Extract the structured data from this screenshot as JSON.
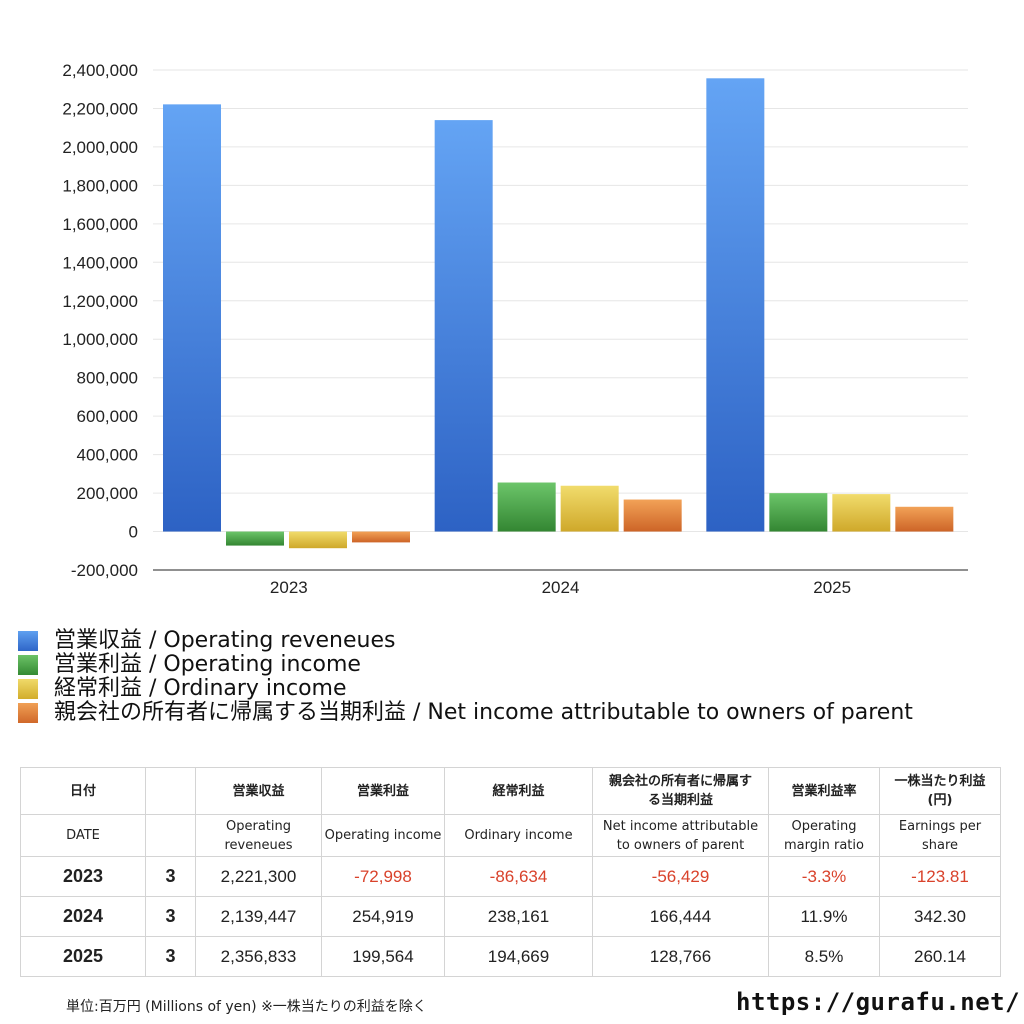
{
  "chart_data": {
    "type": "bar",
    "categories": [
      "2023",
      "2024",
      "2025"
    ],
    "series": [
      {
        "name": "営業収益 / Operating reveneues",
        "values": [
          2221300,
          2139447,
          2356833
        ],
        "color": "#3f7fdc"
      },
      {
        "name": "営業利益 / Operating income",
        "values": [
          -72998,
          254919,
          199564
        ],
        "color": "#4ca04a"
      },
      {
        "name": "経常利益 / Ordinary income",
        "values": [
          -86634,
          238161,
          194669
        ],
        "color": "#e3c43a"
      },
      {
        "name": "親会社の所有者に帰属する当期利益 / Net income attributable to owners of parent",
        "values": [
          -56429,
          166444,
          128766
        ],
        "color": "#e0803a"
      }
    ],
    "ylim": [
      -200000,
      2400000
    ],
    "yticks": [
      "2,400,000",
      "2,200,000",
      "2,000,000",
      "1,800,000",
      "1,600,000",
      "1,400,000",
      "1,200,000",
      "1,000,000",
      "800,000",
      "600,000",
      "400,000",
      "200,000",
      "0",
      "-200,000"
    ],
    "grid": true,
    "legend_position": "bottom-left"
  },
  "table": {
    "headers_ja": [
      "日付",
      "",
      "営業収益",
      "営業利益",
      "経常利益",
      "親会社の所有者に帰属する当期利益",
      "営業利益率",
      "一株当たり利益(円)"
    ],
    "headers_en": [
      "DATE",
      "",
      "Operating reveneues",
      "Operating income",
      "Ordinary income",
      "Net income attributable to owners of parent",
      "Operating margin ratio",
      "Earnings per share"
    ],
    "rows": [
      {
        "year": "2023",
        "month": "3",
        "rev": "2,221,300",
        "op": "-72,998",
        "ord": "-86,634",
        "net": "-56,429",
        "margin": "-3.3%",
        "eps": "-123.81"
      },
      {
        "year": "2024",
        "month": "3",
        "rev": "2,139,447",
        "op": "254,919",
        "ord": "238,161",
        "net": "166,444",
        "margin": "11.9%",
        "eps": "342.30"
      },
      {
        "year": "2025",
        "month": "3",
        "rev": "2,356,833",
        "op": "199,564",
        "ord": "194,669",
        "net": "128,766",
        "margin": "8.5%",
        "eps": "260.14"
      }
    ]
  },
  "footer": {
    "note": "単位:百万円 (Millions of yen) ※一株当たりの利益を除く",
    "site": "https://gurafu.net/"
  }
}
